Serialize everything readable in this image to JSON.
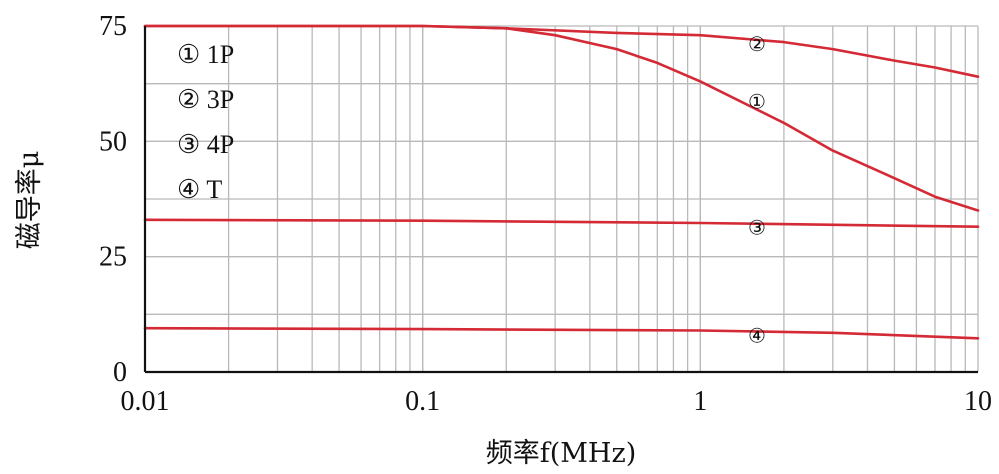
{
  "chart_data": {
    "type": "line",
    "xlabel": "频率f(MHz)",
    "ylabel": "磁导率μ",
    "xscale": "log",
    "xlim": [
      0.01,
      10
    ],
    "ylim": [
      0,
      75
    ],
    "xticks": [
      0.01,
      0.1,
      1,
      10
    ],
    "xtick_labels": [
      "0.01",
      "0.1",
      "1",
      "10"
    ],
    "yticks": [
      0,
      25,
      50,
      75
    ],
    "ytick_labels": [
      "0",
      "25",
      "50",
      "75"
    ],
    "grid": true,
    "legend_position": "top-left",
    "legend": [
      {
        "marker": "①",
        "label": "1P"
      },
      {
        "marker": "②",
        "label": "3P"
      },
      {
        "marker": "③",
        "label": "4P"
      },
      {
        "marker": "④",
        "label": "T"
      }
    ],
    "series_color": "#d42a35",
    "series": [
      {
        "tag": "①",
        "x": [
          0.01,
          0.1,
          0.2,
          0.3,
          0.5,
          0.7,
          1,
          2,
          3,
          5,
          7,
          10
        ],
        "values": [
          75,
          75,
          74.5,
          73,
          70,
          67,
          63,
          54,
          48,
          42,
          38,
          35
        ],
        "tag_at": 1.6
      },
      {
        "tag": "②",
        "x": [
          0.01,
          0.1,
          0.2,
          0.5,
          1,
          2,
          3,
          5,
          7,
          10
        ],
        "values": [
          75,
          75,
          74.5,
          73.5,
          73,
          71.5,
          70,
          67.5,
          66,
          64
        ],
        "tag_at": 1.6
      },
      {
        "tag": "③",
        "x": [
          0.01,
          0.1,
          1,
          10
        ],
        "values": [
          33,
          32.8,
          32.3,
          31.5
        ],
        "tag_at": 1.6
      },
      {
        "tag": "④",
        "x": [
          0.01,
          0.1,
          1,
          3,
          10
        ],
        "values": [
          9.5,
          9.3,
          9,
          8.5,
          7.3
        ],
        "tag_at": 1.6
      }
    ]
  }
}
